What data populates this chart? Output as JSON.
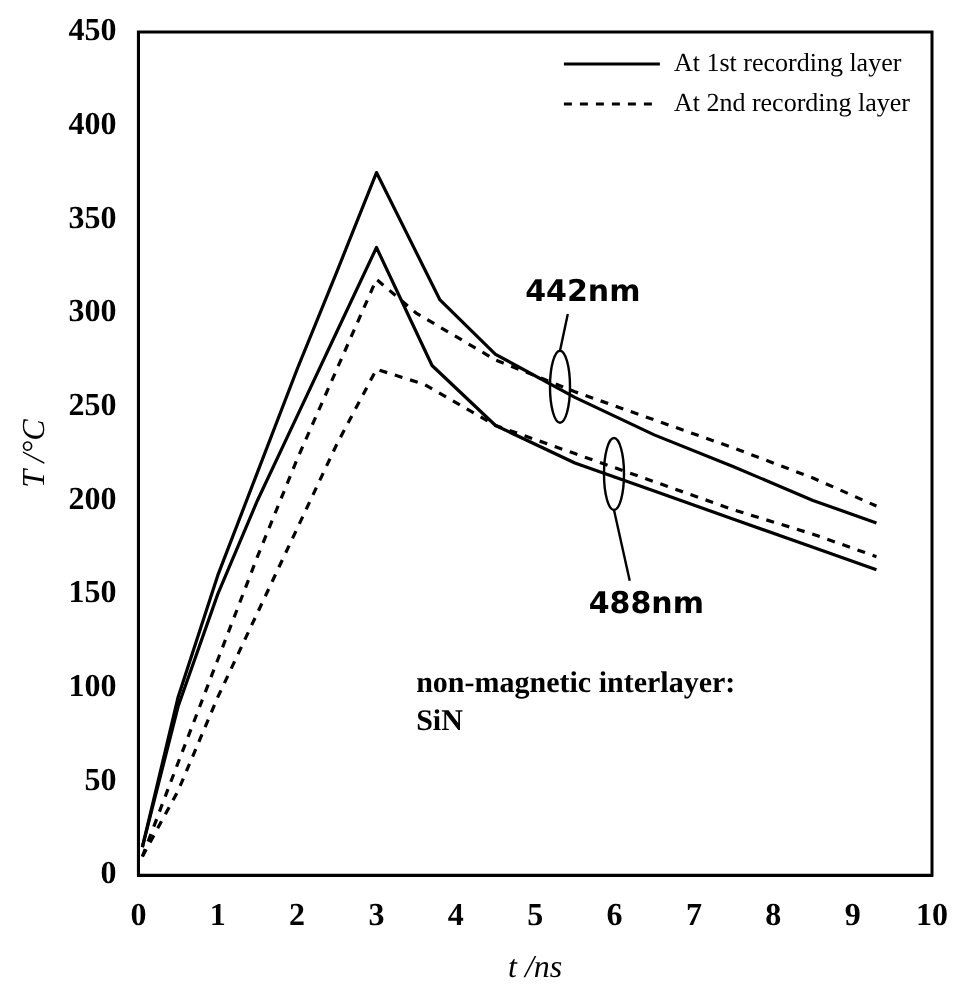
{
  "chart_data": {
    "type": "line",
    "xlabel": "t /ns",
    "ylabel": "T /°C",
    "xlim": [
      0,
      10
    ],
    "xticks": [
      0,
      1,
      2,
      3,
      4,
      5,
      6,
      7,
      8,
      9,
      10
    ],
    "ylim": [
      0,
      450
    ],
    "yticks": [
      0,
      50,
      100,
      150,
      200,
      250,
      300,
      350,
      400,
      450
    ],
    "grid": false,
    "legend": "top right",
    "marker": "none",
    "series": [
      {
        "name": "At 1st recording layer",
        "color": "#000000",
        "line_style": "solid",
        "x": [
          0.05,
          0.5,
          1,
          1.5,
          2,
          2.5,
          3,
          3.8,
          4.5,
          5.5,
          6.5,
          7.5,
          8.5,
          9.3
        ],
        "values": [
          15,
          95,
          160,
          215,
          270,
          322,
          375,
          307,
          278,
          255,
          235,
          218,
          200,
          188
        ]
      },
      {
        "name": "At 2nd recording layer",
        "color": "#000000",
        "line_style": "dashed",
        "x": [
          0.05,
          0.5,
          1,
          1.5,
          2,
          2.5,
          3,
          3.5,
          4.5,
          5.5,
          6.5,
          7.5,
          8.5,
          9.3
        ],
        "values": [
          10,
          60,
          115,
          170,
          222,
          270,
          318,
          300,
          275,
          258,
          243,
          228,
          212,
          197
        ]
      },
      {
        "color": "#000000",
        "line_style": "solid",
        "x": [
          0.05,
          0.5,
          1,
          1.5,
          2,
          2.5,
          3,
          3.7,
          4.5,
          5.5,
          6.5,
          7.5,
          8.5,
          9.3
        ],
        "values": [
          15,
          90,
          150,
          200,
          245,
          290,
          335,
          272,
          240,
          220,
          205,
          190,
          175,
          163
        ]
      },
      {
        "color": "#000000",
        "line_style": "dashed",
        "x": [
          0.05,
          0.5,
          1,
          1.5,
          2,
          2.5,
          3,
          3.6,
          4.5,
          5.5,
          6.5,
          7.5,
          8.5,
          9.3
        ],
        "values": [
          10,
          45,
          95,
          140,
          185,
          230,
          270,
          262,
          240,
          225,
          210,
          195,
          182,
          170
        ]
      }
    ],
    "annotations": [
      "442nm",
      "488nm",
      "non-magnetic interlayer:\nSiN"
    ]
  }
}
